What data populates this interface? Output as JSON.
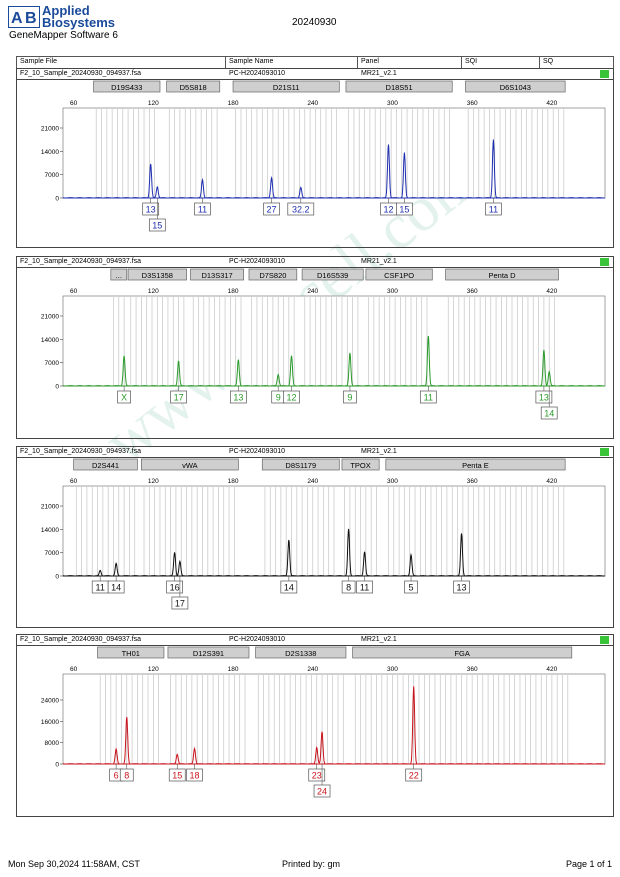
{
  "report": {
    "logo_mark": "A|B",
    "brand_line1": "Applied",
    "brand_line2": "Biosystems",
    "software": "GeneMapper Software 6",
    "run_date": "20240930",
    "watermark": "www.procell.com.cn"
  },
  "table_header": {
    "sample_file": "Sample File",
    "sample_name": "Sample Name",
    "panel": "Panel",
    "sqi": "SQI",
    "sq": "SQ"
  },
  "footer": {
    "printed_on": "Mon Sep 30,2024 11:58AM, CST",
    "printed_by": "Printed by: gm",
    "page": "Page 1 of 1"
  },
  "colors": {
    "blue": "#1f2fb0",
    "green": "#2a9a2a",
    "black": "#111111",
    "red": "#c8141c",
    "bin": "#c4c4c4",
    "sq_ok": "#39c43a"
  },
  "chart_data": [
    {
      "type": "line",
      "sample_file": "F2_10_Sample_20240930_094937.fsa",
      "sample_name": "PC-H2024093010",
      "panel": "MR21_v2.1",
      "color": "#1f2fb0",
      "xlim": [
        52,
        460
      ],
      "x_ticks": [
        60,
        120,
        180,
        240,
        300,
        360,
        420
      ],
      "ylim": [
        0,
        24000
      ],
      "y_ticks": [
        0,
        7000,
        14000,
        21000
      ],
      "loci": [
        {
          "name": "D19S433",
          "start": 75,
          "end": 125
        },
        {
          "name": "D5S818",
          "start": 130,
          "end": 170
        },
        {
          "name": "D21S11",
          "start": 180,
          "end": 260
        },
        {
          "name": "D18S51",
          "start": 265,
          "end": 345
        },
        {
          "name": "D6S1043",
          "start": 355,
          "end": 430
        }
      ],
      "peaks": [
        {
          "x": 118,
          "h": 10200,
          "allele": "13",
          "row": 0
        },
        {
          "x": 123,
          "h": 3300,
          "allele": "15",
          "row": 1
        },
        {
          "x": 157,
          "h": 5400,
          "allele": "11",
          "row": 0
        },
        {
          "x": 209,
          "h": 6000,
          "allele": "27",
          "row": 0
        },
        {
          "x": 231,
          "h": 3100,
          "allele": "32.2",
          "row": 0
        },
        {
          "x": 297,
          "h": 16000,
          "allele": "12",
          "row": 0
        },
        {
          "x": 309,
          "h": 13500,
          "allele": "15",
          "row": 0
        },
        {
          "x": 376,
          "h": 17500,
          "allele": "11",
          "row": 0
        }
      ]
    },
    {
      "type": "line",
      "sample_file": "F2_10_Sample_20240930_094937.fsa",
      "sample_name": "PC-H2024093010",
      "panel": "MR21_v2.1",
      "color": "#2a9a2a",
      "xlim": [
        52,
        460
      ],
      "x_ticks": [
        60,
        120,
        180,
        240,
        300,
        360,
        420
      ],
      "ylim": [
        0,
        24000
      ],
      "y_ticks": [
        0,
        7000,
        14000,
        21000
      ],
      "loci": [
        {
          "name": "...",
          "start": 88,
          "end": 100
        },
        {
          "name": "D3S1358",
          "start": 101,
          "end": 145
        },
        {
          "name": "D13S317",
          "start": 148,
          "end": 188
        },
        {
          "name": "D7S820",
          "start": 192,
          "end": 228
        },
        {
          "name": "D16S539",
          "start": 232,
          "end": 278
        },
        {
          "name": "CSF1PO",
          "start": 280,
          "end": 330
        },
        {
          "name": "Penta D",
          "start": 340,
          "end": 425
        }
      ],
      "peaks": [
        {
          "x": 98,
          "h": 9000,
          "allele": "X",
          "row": 0
        },
        {
          "x": 139,
          "h": 7500,
          "allele": "17",
          "row": 0
        },
        {
          "x": 184,
          "h": 7800,
          "allele": "13",
          "row": 0
        },
        {
          "x": 214,
          "h": 3400,
          "allele": "9",
          "row": 0
        },
        {
          "x": 224,
          "h": 9000,
          "allele": "12",
          "row": 0
        },
        {
          "x": 268,
          "h": 9800,
          "allele": "9",
          "row": 0
        },
        {
          "x": 327,
          "h": 15000,
          "allele": "11",
          "row": 0
        },
        {
          "x": 414,
          "h": 10700,
          "allele": "13",
          "row": 0
        },
        {
          "x": 418,
          "h": 4300,
          "allele": "14",
          "row": 1
        }
      ]
    },
    {
      "type": "line",
      "sample_file": "F2_10_Sample_20240930_094937.fsa",
      "sample_name": "PC-H2024093010",
      "panel": "MR21_v2.1",
      "color": "#111111",
      "xlim": [
        52,
        460
      ],
      "x_ticks": [
        60,
        120,
        180,
        240,
        300,
        360,
        420
      ],
      "ylim": [
        0,
        24000
      ],
      "y_ticks": [
        0,
        7000,
        14000,
        21000
      ],
      "loci": [
        {
          "name": "D2S441",
          "start": 60,
          "end": 108
        },
        {
          "name": "vWA",
          "start": 111,
          "end": 184
        },
        {
          "name": "D8S1179",
          "start": 202,
          "end": 260
        },
        {
          "name": "TPOX",
          "start": 262,
          "end": 290
        },
        {
          "name": "Penta E",
          "start": 295,
          "end": 430
        }
      ],
      "peaks": [
        {
          "x": 80,
          "h": 1600,
          "allele": "11",
          "row": 0
        },
        {
          "x": 92,
          "h": 3700,
          "allele": "14",
          "row": 0
        },
        {
          "x": 136,
          "h": 7000,
          "allele": "16",
          "row": 0
        },
        {
          "x": 140,
          "h": 4300,
          "allele": "17",
          "row": 1
        },
        {
          "x": 222,
          "h": 10800,
          "allele": "14",
          "row": 0
        },
        {
          "x": 267,
          "h": 14000,
          "allele": "8",
          "row": 0
        },
        {
          "x": 279,
          "h": 7200,
          "allele": "11",
          "row": 0
        },
        {
          "x": 314,
          "h": 6300,
          "allele": "5",
          "row": 0
        },
        {
          "x": 352,
          "h": 12700,
          "allele": "13",
          "row": 0
        }
      ]
    },
    {
      "type": "line",
      "sample_file": "F2_10_Sample_20240930_094937.fsa",
      "sample_name": "PC-H2024093010",
      "panel": "MR21_v2.1",
      "color": "#c8141c",
      "xlim": [
        52,
        460
      ],
      "x_ticks": [
        60,
        120,
        180,
        240,
        300,
        360,
        420
      ],
      "ylim": [
        0,
        30000
      ],
      "y_ticks": [
        0,
        8000,
        16000,
        24000
      ],
      "loci": [
        {
          "name": "TH01",
          "start": 78,
          "end": 128
        },
        {
          "name": "D12S391",
          "start": 131,
          "end": 192
        },
        {
          "name": "D2S1338",
          "start": 197,
          "end": 265
        },
        {
          "name": "FGA",
          "start": 270,
          "end": 435
        }
      ],
      "peaks": [
        {
          "x": 92,
          "h": 5500,
          "allele": "6",
          "row": 0
        },
        {
          "x": 100,
          "h": 17500,
          "allele": "8",
          "row": 0
        },
        {
          "x": 138,
          "h": 3600,
          "allele": "15",
          "row": 0
        },
        {
          "x": 151,
          "h": 5800,
          "allele": "18",
          "row": 0
        },
        {
          "x": 243,
          "h": 6200,
          "allele": "23",
          "row": 0
        },
        {
          "x": 247,
          "h": 12000,
          "allele": "24",
          "row": 1
        },
        {
          "x": 316,
          "h": 29000,
          "allele": "22",
          "row": 0
        }
      ]
    }
  ]
}
